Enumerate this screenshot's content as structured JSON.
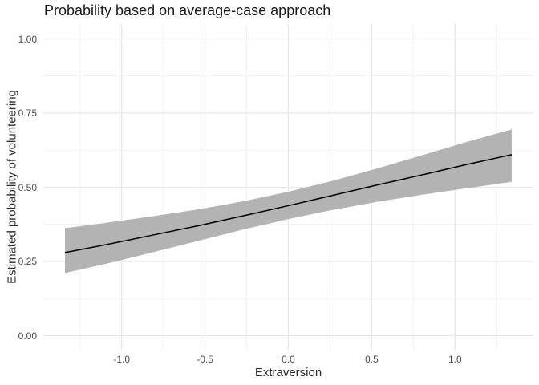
{
  "chart_data": {
    "type": "line",
    "title": "Probability based on average-case approach",
    "xlabel": "Extraversion",
    "ylabel": "Estimated probability of volunteering",
    "xlim": [
      -1.47,
      1.47
    ],
    "ylim": [
      -0.05,
      1.05
    ],
    "grid": true,
    "legend": false,
    "x_major_ticks": [
      -1.0,
      -0.5,
      0.0,
      0.5,
      1.0
    ],
    "x_tick_labels": [
      "-1.0",
      "-0.5",
      "0.0",
      "0.5",
      "1.0"
    ],
    "x_minor_ticks": [
      -1.25,
      -0.75,
      -0.25,
      0.25,
      0.75,
      1.25
    ],
    "y_major_ticks": [
      0.0,
      0.25,
      0.5,
      0.75,
      1.0
    ],
    "y_tick_labels": [
      "0.00",
      "0.25",
      "0.50",
      "0.75",
      "1.00"
    ],
    "y_minor_ticks": [
      0.125,
      0.375,
      0.625,
      0.875
    ],
    "series": [
      {
        "name": "confidence-band",
        "type": "area",
        "fill": "#b3b3b3",
        "x": [
          -1.34,
          -1.072,
          -0.804,
          -0.536,
          -0.268,
          0.0,
          0.268,
          0.536,
          0.804,
          1.072,
          1.34
        ],
        "y_upper": [
          0.362,
          0.382,
          0.403,
          0.426,
          0.453,
          0.485,
          0.522,
          0.564,
          0.608,
          0.653,
          0.695
        ],
        "y_lower": [
          0.211,
          0.245,
          0.282,
          0.32,
          0.358,
          0.393,
          0.424,
          0.451,
          0.475,
          0.497,
          0.518
        ]
      },
      {
        "name": "estimated-probability-line",
        "type": "line",
        "color": "#000000",
        "x": [
          -1.34,
          -1.072,
          -0.804,
          -0.536,
          -0.268,
          0.0,
          0.268,
          0.536,
          0.804,
          1.072,
          1.34
        ],
        "y": [
          0.28,
          0.309,
          0.34,
          0.371,
          0.404,
          0.438,
          0.473,
          0.508,
          0.542,
          0.577,
          0.61
        ]
      }
    ],
    "colors": {
      "background": "#ffffff",
      "grid_major": "#e7e7e7",
      "grid_minor": "#f1f1f1",
      "band": "#b3b3b3",
      "line": "#000000",
      "tick_label": "#4d4d4d",
      "axis_title": "#2b2b2b",
      "title": "#1a1a1a"
    }
  }
}
